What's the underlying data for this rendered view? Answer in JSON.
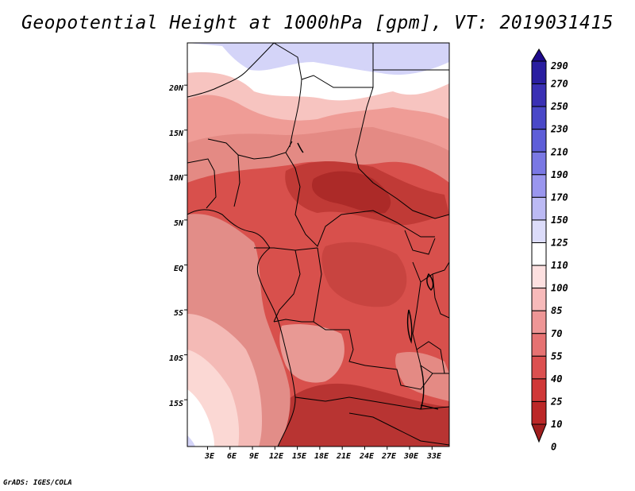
{
  "title": "Geopotential Height at 1000hPa [gpm], VT: 2019031415",
  "footer": "GrADS: IGES/COLA",
  "chart_data": {
    "type": "heatmap",
    "variable": "Geopotential Height at 1000hPa",
    "units": "gpm",
    "valid_time": "2019031415",
    "x_ticks": [
      "3E",
      "6E",
      "9E",
      "12E",
      "15E",
      "18E",
      "21E",
      "24E",
      "27E",
      "30E",
      "33E"
    ],
    "x_values": [
      3,
      6,
      9,
      12,
      15,
      18,
      21,
      24,
      27,
      30,
      33
    ],
    "y_ticks": [
      "20N",
      "15N",
      "10N",
      "5N",
      "EQ",
      "5S",
      "10S",
      "15S"
    ],
    "y_values": [
      20,
      15,
      10,
      5,
      0,
      -5,
      -10,
      -15
    ],
    "xlim": [
      0.3,
      35.3
    ],
    "ylim": [
      -20.2,
      24.7
    ],
    "colorbar": {
      "levels": [
        "290",
        "270",
        "250",
        "230",
        "210",
        "190",
        "170",
        "150",
        "125",
        "110",
        "100",
        "85",
        "70",
        "55",
        "40",
        "25",
        "10",
        "0"
      ],
      "colors": [
        "#1e0a8c",
        "#2a1ea0",
        "#3a30b4",
        "#4a48c8",
        "#5e5ed8",
        "#7a78e4",
        "#9a96ee",
        "#bcbaf4",
        "#dcdcfa",
        "#ffffff",
        "#fde0e0",
        "#f7baba",
        "#ee9696",
        "#e67272",
        "#dc5050",
        "#d03838",
        "#bc2828",
        "#a01e1e"
      ]
    }
  },
  "colors": {
    "background": "#ffffff",
    "frame": "#000000",
    "high_blue": "#d4d4f8",
    "low_red": "#a01e1e"
  }
}
